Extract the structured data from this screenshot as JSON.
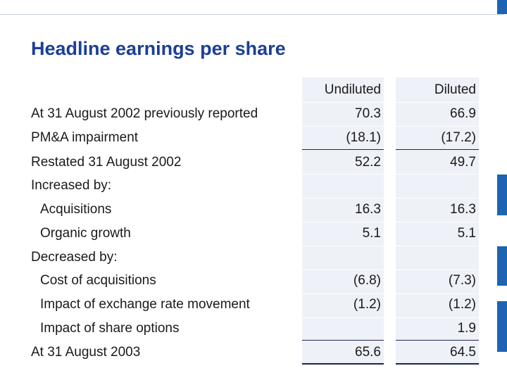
{
  "title": "Headline earnings per share",
  "columns": {
    "undiluted": "Undiluted",
    "diluted": "Diluted"
  },
  "rows": [
    {
      "label": "At 31 August 2002 previously reported",
      "undiluted": "70.3",
      "diluted": "66.9"
    },
    {
      "label": "PM&A impairment",
      "undiluted": "(18.1)",
      "diluted": "(17.2)"
    },
    {
      "label": "Restated 31 August 2002",
      "undiluted": "52.2",
      "diluted": "49.7"
    },
    {
      "label": "Increased by:",
      "undiluted": "",
      "diluted": ""
    },
    {
      "label": "Acquisitions",
      "undiluted": "16.3",
      "diluted": "16.3"
    },
    {
      "label": "Organic growth",
      "undiluted": "5.1",
      "diluted": "5.1"
    },
    {
      "label": "Decreased by:",
      "undiluted": "",
      "diluted": ""
    },
    {
      "label": "Cost of acquisitions",
      "undiluted": "(6.8)",
      "diluted": "(7.3)"
    },
    {
      "label": "Impact of exchange rate movement",
      "undiluted": "(1.2)",
      "diluted": "(1.2)"
    },
    {
      "label": "Impact of share options",
      "undiluted": "",
      "diluted": "1.9"
    },
    {
      "label": "At 31 August 2003",
      "undiluted": "65.6",
      "diluted": "64.5"
    }
  ],
  "colors": {
    "title": "#1c3f95",
    "accent": "#1f63b3",
    "column_shade": "#eef1f7",
    "rule": "#1c2a54"
  }
}
